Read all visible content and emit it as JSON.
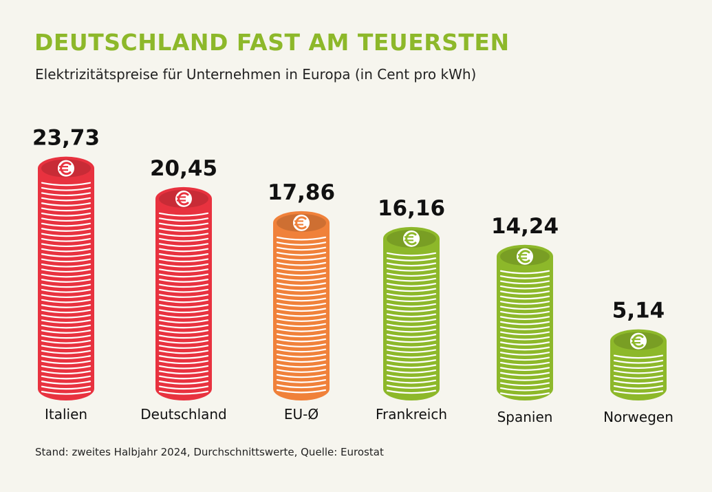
{
  "header": {
    "title": "DEUTSCHLAND FAST AM TEUERSTEN",
    "subtitle": "Elektrizitätspreise für Unternehmen in Europa (in Cent pro kWh)"
  },
  "footer": {
    "source": "Stand: zweites Halbjahr 2024, Durchschnittswerte, Quelle: Eurostat"
  },
  "colors": {
    "title": "#8db82a",
    "text": "#111111",
    "background": "#f6f5ee",
    "red": "#e8323f",
    "orange": "#f0813a",
    "green": "#8db82a"
  },
  "chart_data": {
    "type": "bar",
    "title": "DEUTSCHLAND FAST AM TEUERSTEN",
    "subtitle": "Elektrizitätspreise für Unternehmen in Europa (in Cent pro kWh)",
    "xlabel": "",
    "ylabel": "Cent pro kWh",
    "categories": [
      "Italien",
      "Deutschland",
      "EU-Ø",
      "Frankreich",
      "Spanien",
      "Norwegen"
    ],
    "values": [
      23.73,
      20.45,
      17.86,
      16.16,
      14.24,
      5.14
    ],
    "value_labels": [
      "23,73",
      "20,45",
      "17,86",
      "16,16",
      "14,24",
      "5,14"
    ],
    "bar_colors": [
      "red",
      "red",
      "orange",
      "green",
      "green",
      "green"
    ],
    "grid": false,
    "legend": "none",
    "icon": "euro-coin-icon"
  }
}
